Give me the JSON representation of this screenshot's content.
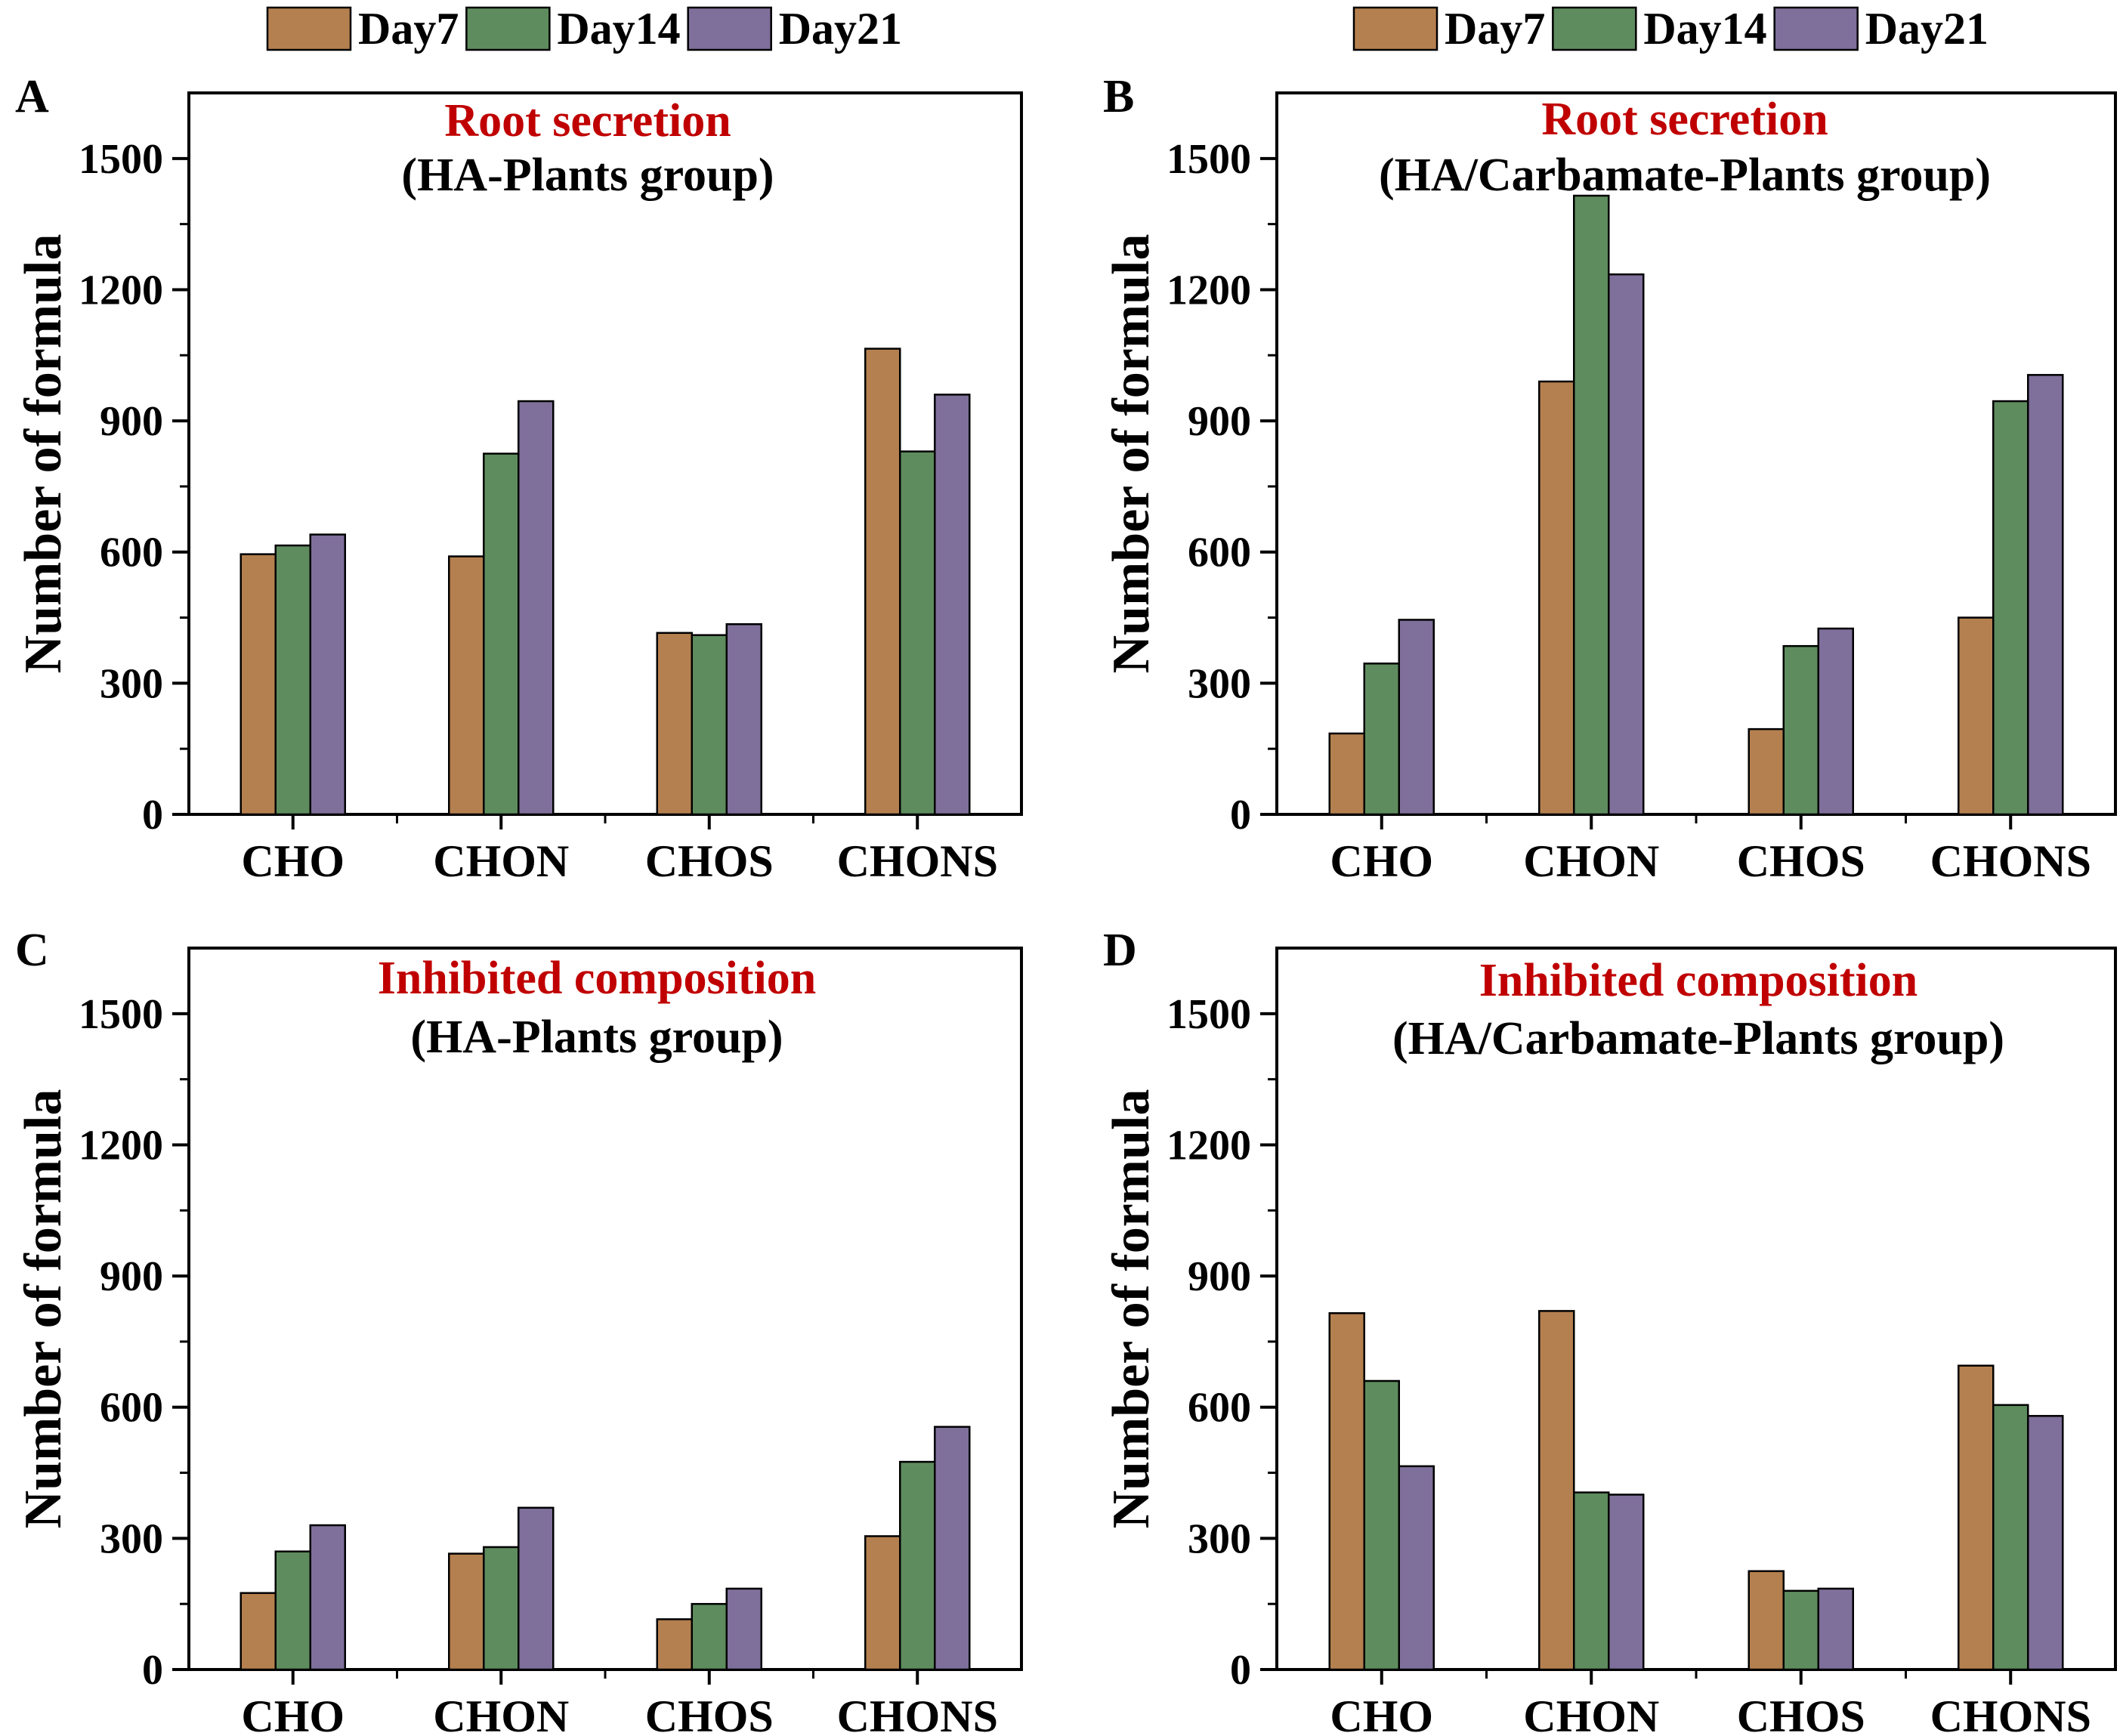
{
  "legend": {
    "series": [
      "Day7",
      "Day14",
      "Day21"
    ],
    "colors": [
      "#b5804f",
      "#5e8c5e",
      "#7f6f9b"
    ]
  },
  "chart_data": [
    {
      "type": "bar",
      "panel": "A",
      "title": "Root secretion",
      "subtitle": "(HA-Plants group)",
      "ylabel": "Number of formula",
      "categories": [
        "CHO",
        "CHON",
        "CHOS",
        "CHONS"
      ],
      "yticks": [
        0,
        300,
        600,
        900,
        1200,
        1500
      ],
      "ylim": [
        0,
        1650
      ],
      "series": [
        {
          "name": "Day7",
          "values": [
            595,
            590,
            415,
            1065
          ]
        },
        {
          "name": "Day14",
          "values": [
            615,
            825,
            410,
            830
          ]
        },
        {
          "name": "Day21",
          "values": [
            640,
            945,
            435,
            960
          ]
        }
      ]
    },
    {
      "type": "bar",
      "panel": "B",
      "title": "Root secretion",
      "subtitle": "(HA/Carbamate-Plants group)",
      "ylabel": "Number of formula",
      "categories": [
        "CHO",
        "CHON",
        "CHOS",
        "CHONS"
      ],
      "yticks": [
        0,
        300,
        600,
        900,
        1200,
        1500
      ],
      "ylim": [
        0,
        1650
      ],
      "series": [
        {
          "name": "Day7",
          "values": [
            185,
            990,
            195,
            450
          ]
        },
        {
          "name": "Day14",
          "values": [
            345,
            1415,
            385,
            945
          ]
        },
        {
          "name": "Day21",
          "values": [
            445,
            1235,
            425,
            1005
          ]
        }
      ]
    },
    {
      "type": "bar",
      "panel": "C",
      "title": "Inhibited composition",
      "subtitle": "(HA-Plants group)",
      "ylabel": "Number of formula",
      "categories": [
        "CHO",
        "CHON",
        "CHOS",
        "CHONS"
      ],
      "yticks": [
        0,
        300,
        600,
        900,
        1200,
        1500
      ],
      "ylim": [
        0,
        1650
      ],
      "series": [
        {
          "name": "Day7",
          "values": [
            175,
            265,
            115,
            305
          ]
        },
        {
          "name": "Day14",
          "values": [
            270,
            280,
            150,
            475
          ]
        },
        {
          "name": "Day21",
          "values": [
            330,
            370,
            185,
            555
          ]
        }
      ]
    },
    {
      "type": "bar",
      "panel": "D",
      "title": "Inhibited composition",
      "subtitle": "(HA/Carbamate-Plants group)",
      "ylabel": "Number of formula",
      "categories": [
        "CHO",
        "CHON",
        "CHOS",
        "CHONS"
      ],
      "yticks": [
        0,
        300,
        600,
        900,
        1200,
        1500
      ],
      "ylim": [
        0,
        1650
      ],
      "series": [
        {
          "name": "Day7",
          "values": [
            815,
            820,
            225,
            695
          ]
        },
        {
          "name": "Day14",
          "values": [
            660,
            405,
            180,
            605
          ]
        },
        {
          "name": "Day21",
          "values": [
            465,
            400,
            185,
            580
          ]
        }
      ]
    }
  ]
}
